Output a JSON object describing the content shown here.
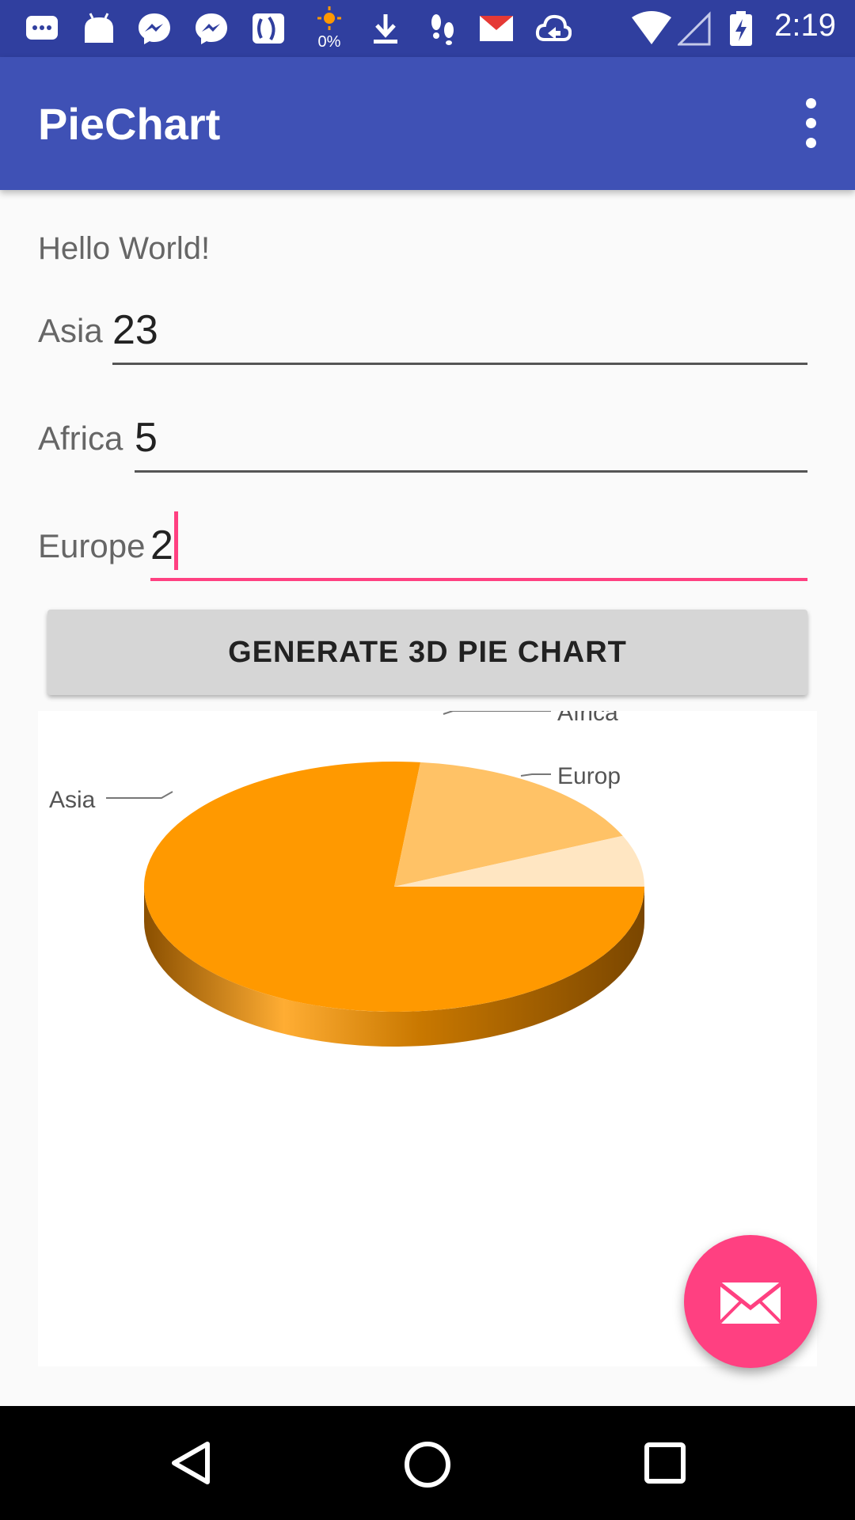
{
  "status_bar": {
    "time": "2:19",
    "battery_saver_text": "0%",
    "icons": [
      "chat-icon",
      "android-icon",
      "messenger-icon",
      "messenger-icon",
      "social-app-icon",
      "brightness-icon",
      "download-icon",
      "footsteps-icon",
      "yahoo-mail-icon",
      "cloud-sync-icon",
      "wifi-icon",
      "cell-signal-icon",
      "battery-icon"
    ]
  },
  "app_bar": {
    "title": "PieChart",
    "menu_icon": "overflow-menu-icon"
  },
  "content": {
    "hello_text": "Hello World!",
    "fields": [
      {
        "label": "Asia",
        "value": "23"
      },
      {
        "label": "Africa",
        "value": "5"
      },
      {
        "label": "Europe",
        "value": "2"
      }
    ],
    "generate_button_label": "GENERATE 3D PIE CHART"
  },
  "chart_data": {
    "type": "pie",
    "categories": [
      "Asia",
      "Africa",
      "Europe"
    ],
    "values": [
      23,
      5,
      2
    ],
    "slice_labels": [
      "Asia",
      "Africa",
      "Europ"
    ],
    "colors": [
      "#ff9900",
      "#ffc266",
      "#ffe6c2"
    ],
    "side_color": "#b36b00",
    "title": "",
    "legend": "none"
  },
  "fab": {
    "icon": "email-icon",
    "color": "#ff4081"
  },
  "nav_bar": {
    "icons": [
      "back-icon",
      "home-icon",
      "recents-icon"
    ]
  },
  "theme": {
    "primary": "#3f51b5",
    "primary_dark": "#303f9f",
    "accent": "#ff4081"
  }
}
